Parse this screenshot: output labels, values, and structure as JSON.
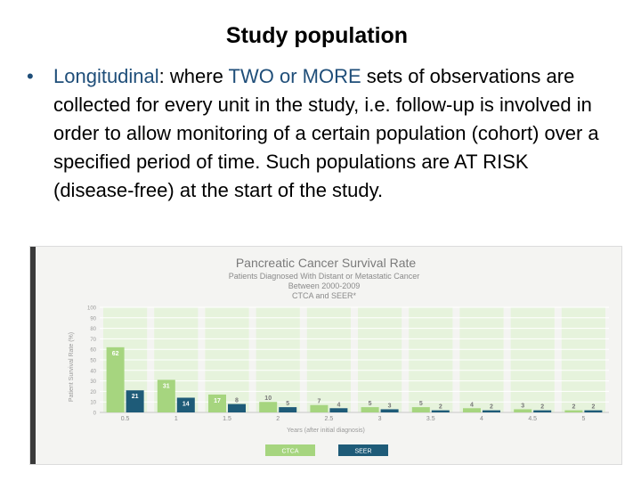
{
  "slide": {
    "title": "Study population",
    "bullet": {
      "term": "Longitudinal",
      "text_1": ": where ",
      "highlight": "TWO or MORE",
      "text_2": " sets of observations are collected for every unit in the study, i.e. follow-up is involved in order to allow monitoring of a certain population (cohort) over a specified period of time.  Such populations are AT RISK (disease-free) at the start of the study."
    }
  },
  "colors": {
    "accent": "#1f4e79",
    "ctca": "#a6d57f",
    "seer": "#1e5b78",
    "title_gray": "#7a7a7a",
    "band": "#e6f3dc"
  },
  "chart_data": {
    "type": "bar",
    "title": "Pancreatic Cancer Survival Rate",
    "subtitle_lines": [
      "Patients Diagnosed With Distant or Metastatic Cancer",
      "Between 2000-2009",
      "CTCA and SEER*"
    ],
    "xlabel": "Years (after initial diagnosis)",
    "ylabel": "Patient Survival Rate (%)",
    "ylim": [
      0,
      100
    ],
    "yticks": [
      0,
      10,
      20,
      30,
      40,
      50,
      60,
      70,
      80,
      90,
      100
    ],
    "categories": [
      "0.5",
      "1",
      "1.5",
      "2",
      "2.5",
      "3",
      "3.5",
      "4",
      "4.5",
      "5"
    ],
    "series": [
      {
        "name": "CTCA",
        "values": [
          62,
          31,
          17,
          10,
          7,
          5,
          5,
          4,
          3,
          2
        ]
      },
      {
        "name": "SEER",
        "values": [
          21,
          14,
          8,
          5,
          4,
          3,
          2,
          2,
          2,
          2
        ]
      }
    ],
    "legend_position": "bottom-center",
    "grid": true
  }
}
